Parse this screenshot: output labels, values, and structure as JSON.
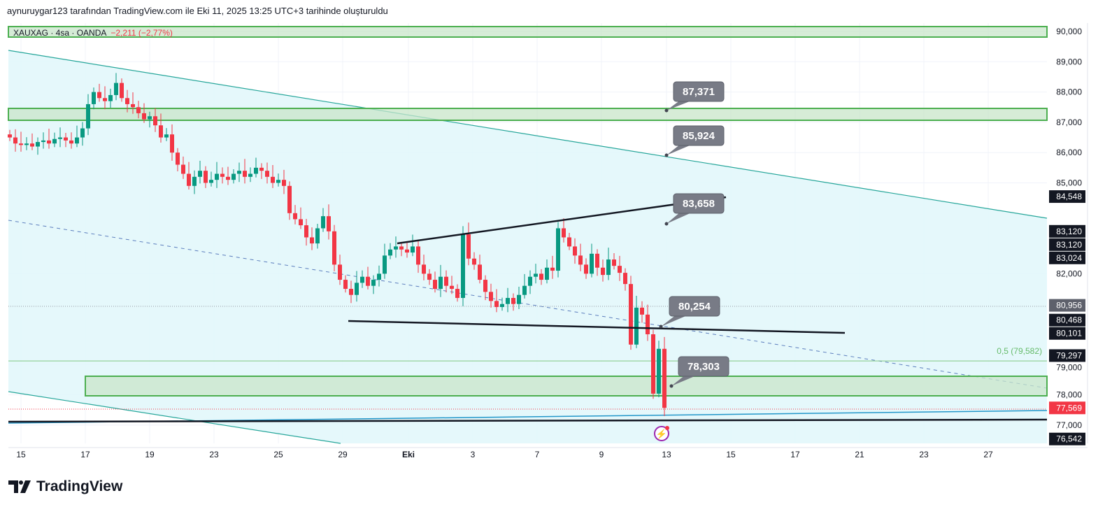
{
  "attribution": "aynuruygar123 tarafından TradingView.com ile Eki 11, 2025 13:25 UTC+3 tarihinde oluşturuldu",
  "legend": {
    "symbol": "XAUXAG · 4sa · OANDA",
    "change": "−2,211 (−2,77%)"
  },
  "logo_text": "TradingView",
  "colors": {
    "up": "#089981",
    "down": "#f23645",
    "zone": "#4caf50",
    "channel": "#26a69a",
    "fill": "#e0f7fa"
  },
  "chart_data": {
    "type": "candlestick",
    "title": "XAUXAG · 4sa · OANDA",
    "ylim": [
      76300,
      90300
    ],
    "y_ticks": [
      "90,000",
      "89,000",
      "88,000",
      "87,000",
      "86,000",
      "85,000",
      "82,000",
      "79,000",
      "78,000",
      "77,000"
    ],
    "y_tick_values": [
      90000,
      89000,
      88000,
      87000,
      86000,
      85000,
      82000,
      79000,
      78000,
      77000
    ],
    "x_ticks": [
      "15",
      "17",
      "19",
      "23",
      "25",
      "29",
      "Eki",
      "3",
      "7",
      "9",
      "13",
      "15",
      "17",
      "21",
      "23",
      "27"
    ],
    "close": [
      86.5,
      86.3,
      86.25,
      86.3,
      86.2,
      86.35,
      86.4,
      86.3,
      86.45,
      86.5,
      86.4,
      86.3,
      86.5,
      86.8,
      87.6,
      88.0,
      87.8,
      87.7,
      87.9,
      88.3,
      87.8,
      87.6,
      87.5,
      87.3,
      87.1,
      87.2,
      86.9,
      86.5,
      86.6,
      86.0,
      85.6,
      85.3,
      84.9,
      85.2,
      85.4,
      85.0,
      85.1,
      85.3,
      85.2,
      85.1,
      85.3,
      85.4,
      85.2,
      85.3,
      85.5,
      85.4,
      85.2,
      85.0,
      85.1,
      84.9,
      84.0,
      83.8,
      83.6,
      83.2,
      83.0,
      83.5,
      83.9,
      83.4,
      82.3,
      81.8,
      81.5,
      81.3,
      81.7,
      81.9,
      81.6,
      81.8,
      82.0,
      82.6,
      82.8,
      82.9,
      82.8,
      82.7,
      82.9,
      82.3,
      82.0,
      81.8,
      81.5,
      81.9,
      81.6,
      81.5,
      81.2,
      83.3,
      82.5,
      82.3,
      81.8,
      81.4,
      81.1,
      80.9,
      81.0,
      81.2,
      81.0,
      81.3,
      81.6,
      81.9,
      82.0,
      81.8,
      82.2,
      82.1,
      83.5,
      83.2,
      82.9,
      82.6,
      82.3,
      82.0,
      82.66,
      82.2,
      81.96,
      82.47,
      82.26,
      82.03,
      81.66,
      79.66,
      80.88,
      80.65,
      80.0,
      78.04,
      79.52,
      77.569
    ],
    "price_badges": [
      {
        "value": "84,548",
        "price": 84548,
        "color": "#131722"
      },
      {
        "value": "83,120",
        "price": 83400,
        "color": "#131722"
      },
      {
        "value": "83,120",
        "price": 83000,
        "color": "#131722"
      },
      {
        "value": "83,024",
        "price": 82600,
        "color": "#131722"
      },
      {
        "value": "80,956",
        "price": 80956,
        "color": "#5d606b"
      },
      {
        "value": "80,468",
        "price": 80468,
        "color": "#131722"
      },
      {
        "value": "80,101",
        "price": 80050,
        "color": "#131722"
      },
      {
        "value": "79,297",
        "price": 79297,
        "color": "#131722"
      },
      {
        "value": "77,569",
        "price": 77569,
        "color": "#f23645"
      },
      {
        "value": "76,542",
        "price": 76542,
        "color": "#131722"
      }
    ],
    "annotations": [
      {
        "text": "87,371",
        "price": 87371
      },
      {
        "text": "85,924",
        "price": 85924
      },
      {
        "text": "83,658",
        "price": 83658
      },
      {
        "text": "80,254",
        "price": 80254
      },
      {
        "text": "78,303",
        "price": 78303
      }
    ],
    "fib_label": "0,5 (79,582)",
    "fib_price": 79582
  }
}
